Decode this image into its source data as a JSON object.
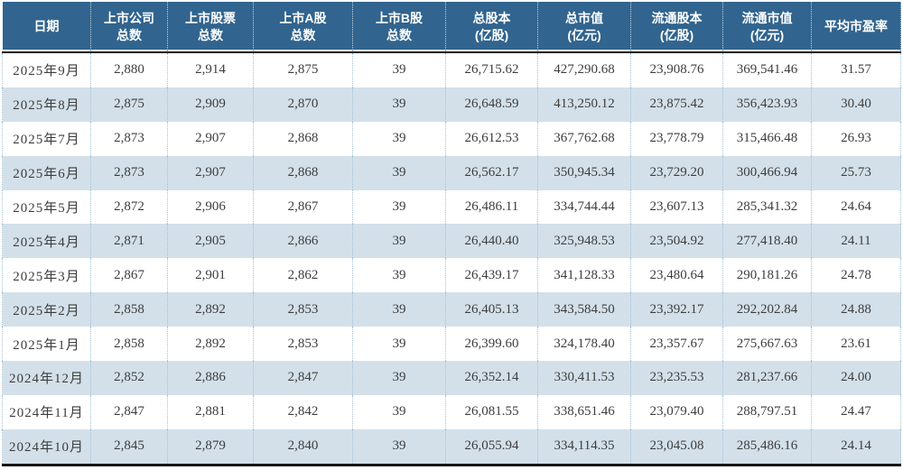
{
  "colors": {
    "header_bg": "#31648e",
    "stripe": "#d3e0ea",
    "divider": "#a3c2d6",
    "text": "#3d3d3d",
    "rule": "#161616"
  },
  "table": {
    "headers": [
      {
        "l1": "日期",
        "l2": ""
      },
      {
        "l1": "上市公司",
        "l2": "总数"
      },
      {
        "l1": "上市股票",
        "l2": "总数"
      },
      {
        "l1": "上市A股",
        "l2": "总数"
      },
      {
        "l1": "上市B股",
        "l2": "总数"
      },
      {
        "l1": "总股本",
        "l2": "(亿股)"
      },
      {
        "l1": "总市值",
        "l2": "(亿元)"
      },
      {
        "l1": "流通股本",
        "l2": "(亿股)"
      },
      {
        "l1": "流通市值",
        "l2": "(亿元)"
      },
      {
        "l1": "平均市盈率",
        "l2": ""
      }
    ],
    "rows": [
      [
        "2025年9月",
        "2,880",
        "2,914",
        "2,875",
        "39",
        "26,715.62",
        "427,290.68",
        "23,908.76",
        "369,541.46",
        "31.57"
      ],
      [
        "2025年8月",
        "2,875",
        "2,909",
        "2,870",
        "39",
        "26,648.59",
        "413,250.12",
        "23,875.42",
        "356,423.93",
        "30.40"
      ],
      [
        "2025年7月",
        "2,873",
        "2,907",
        "2,868",
        "39",
        "26,612.53",
        "367,762.68",
        "23,778.79",
        "315,466.48",
        "26.93"
      ],
      [
        "2025年6月",
        "2,873",
        "2,907",
        "2,868",
        "39",
        "26,562.17",
        "350,945.34",
        "23,729.20",
        "300,466.94",
        "25.73"
      ],
      [
        "2025年5月",
        "2,872",
        "2,906",
        "2,867",
        "39",
        "26,486.11",
        "334,744.44",
        "23,607.13",
        "285,341.32",
        "24.64"
      ],
      [
        "2025年4月",
        "2,871",
        "2,905",
        "2,866",
        "39",
        "26,440.40",
        "325,948.53",
        "23,504.92",
        "277,418.40",
        "24.11"
      ],
      [
        "2025年3月",
        "2,867",
        "2,901",
        "2,862",
        "39",
        "26,439.17",
        "341,128.33",
        "23,480.64",
        "290,181.26",
        "24.78"
      ],
      [
        "2025年2月",
        "2,858",
        "2,892",
        "2,853",
        "39",
        "26,405.13",
        "343,584.50",
        "23,392.17",
        "292,202.84",
        "24.88"
      ],
      [
        "2025年1月",
        "2,858",
        "2,892",
        "2,853",
        "39",
        "26,399.60",
        "324,178.40",
        "23,357.67",
        "275,667.63",
        "23.61"
      ],
      [
        "2024年12月",
        "2,852",
        "2,886",
        "2,847",
        "39",
        "26,352.14",
        "330,411.53",
        "23,235.53",
        "281,237.66",
        "24.00"
      ],
      [
        "2024年11月",
        "2,847",
        "2,881",
        "2,842",
        "39",
        "26,081.55",
        "338,651.46",
        "23,079.40",
        "288,797.51",
        "24.47"
      ],
      [
        "2024年10月",
        "2,845",
        "2,879",
        "2,840",
        "39",
        "26,055.94",
        "334,114.35",
        "23,045.08",
        "285,486.16",
        "24.14"
      ]
    ]
  },
  "chart_data": {
    "type": "table",
    "title": "",
    "columns": [
      "日期",
      "上市公司总数",
      "上市股票总数",
      "上市A股总数",
      "上市B股总数",
      "总股本(亿股)",
      "总市值(亿元)",
      "流通股本(亿股)",
      "流通市值(亿元)",
      "平均市盈率"
    ],
    "rows": [
      [
        "2025年9月",
        2880,
        2914,
        2875,
        39,
        26715.62,
        427290.68,
        23908.76,
        369541.46,
        31.57
      ],
      [
        "2025年8月",
        2875,
        2909,
        2870,
        39,
        26648.59,
        413250.12,
        23875.42,
        356423.93,
        30.4
      ],
      [
        "2025年7月",
        2873,
        2907,
        2868,
        39,
        26612.53,
        367762.68,
        23778.79,
        315466.48,
        26.93
      ],
      [
        "2025年6月",
        2873,
        2907,
        2868,
        39,
        26562.17,
        350945.34,
        23729.2,
        300466.94,
        25.73
      ],
      [
        "2025年5月",
        2872,
        2906,
        2867,
        39,
        26486.11,
        334744.44,
        23607.13,
        285341.32,
        24.64
      ],
      [
        "2025年4月",
        2871,
        2905,
        2866,
        39,
        26440.4,
        325948.53,
        23504.92,
        277418.4,
        24.11
      ],
      [
        "2025年3月",
        2867,
        2901,
        2862,
        39,
        26439.17,
        341128.33,
        23480.64,
        290181.26,
        24.78
      ],
      [
        "2025年2月",
        2858,
        2892,
        2853,
        39,
        26405.13,
        343584.5,
        23392.17,
        292202.84,
        24.88
      ],
      [
        "2025年1月",
        2858,
        2892,
        2853,
        39,
        26399.6,
        324178.4,
        23357.67,
        275667.63,
        23.61
      ],
      [
        "2024年12月",
        2852,
        2886,
        2847,
        39,
        26352.14,
        330411.53,
        23235.53,
        281237.66,
        24.0
      ],
      [
        "2024年11月",
        2847,
        2881,
        2842,
        39,
        26081.55,
        338651.46,
        23079.4,
        288797.51,
        24.47
      ],
      [
        "2024年10月",
        2845,
        2879,
        2840,
        39,
        26055.94,
        334114.35,
        23045.08,
        285486.16,
        24.14
      ]
    ]
  }
}
